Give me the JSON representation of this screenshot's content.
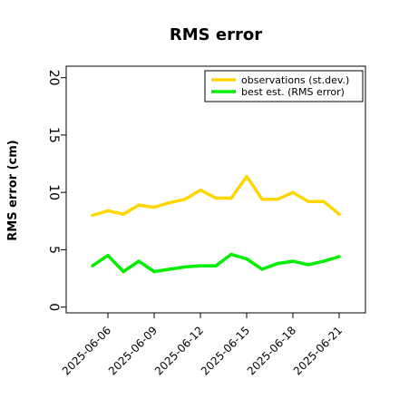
{
  "chart_data": {
    "type": "line",
    "title": "RMS error",
    "xlabel": "",
    "ylabel": "RMS error (cm)",
    "x": [
      "2025-06-05",
      "2025-06-06",
      "2025-06-07",
      "2025-06-08",
      "2025-06-09",
      "2025-06-10",
      "2025-06-11",
      "2025-06-12",
      "2025-06-13",
      "2025-06-14",
      "2025-06-15",
      "2025-06-16",
      "2025-06-17",
      "2025-06-18",
      "2025-06-19",
      "2025-06-20",
      "2025-06-21"
    ],
    "xticks": [
      "2025-06-06",
      "2025-06-09",
      "2025-06-12",
      "2025-06-15",
      "2025-06-18",
      "2025-06-21"
    ],
    "highlight_tick": "2025-06-12",
    "highlight_color": "#228B22",
    "ylim": [
      -0.5,
      21
    ],
    "yticks": [
      0,
      5,
      10,
      15,
      20
    ],
    "grid": false,
    "legend_position": "top-right",
    "series": [
      {
        "name": "observations (st.dev.)",
        "color": "#FFD700",
        "values": [
          8.0,
          8.4,
          8.1,
          8.9,
          8.7,
          9.1,
          9.4,
          10.2,
          9.5,
          9.5,
          11.4,
          9.4,
          9.4,
          10.0,
          9.2,
          9.2,
          8.1
        ]
      },
      {
        "name": "best est. (RMS error)",
        "color": "#00EE00",
        "values": [
          3.6,
          4.5,
          3.1,
          4.0,
          3.1,
          3.3,
          3.5,
          3.6,
          3.6,
          4.6,
          4.2,
          3.3,
          3.8,
          4.0,
          3.7,
          4.0,
          4.4
        ]
      }
    ]
  }
}
